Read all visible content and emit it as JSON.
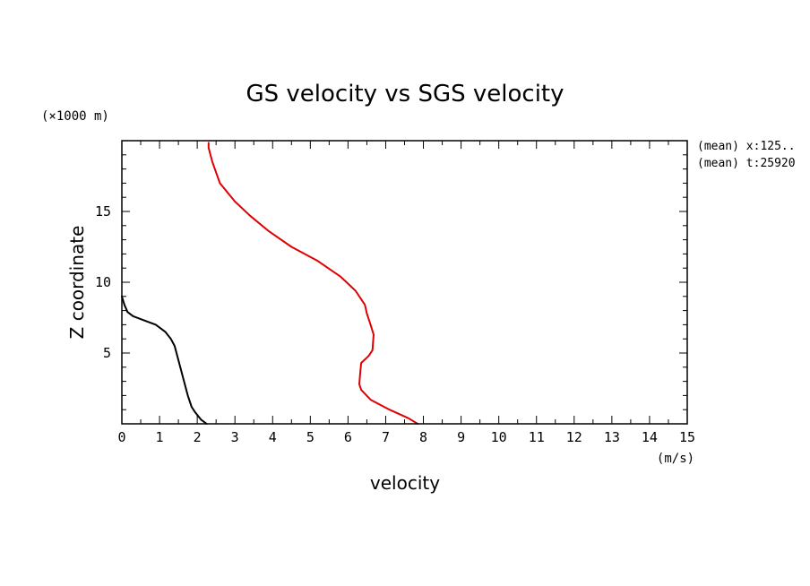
{
  "chart_data": {
    "type": "line",
    "title": "GS velocity vs SGS velocity",
    "xlabel": "velocity",
    "ylabel": "Z coordinate",
    "x_unit": "(m/s)",
    "y_unit": "(×1000 m)",
    "xlim": [
      0,
      15
    ],
    "ylim": [
      0,
      20
    ],
    "x_ticks": [
      0,
      1,
      2,
      3,
      4,
      5,
      6,
      7,
      8,
      9,
      10,
      11,
      12,
      13,
      14,
      15
    ],
    "y_ticks": [
      5,
      10,
      15
    ],
    "grid": false,
    "annotations": [
      "(mean) x:125..",
      "(mean) t:25920"
    ],
    "series": [
      {
        "color": "#000000",
        "points": [
          [
            2.25,
            0.0
          ],
          [
            2.1,
            0.3
          ],
          [
            1.95,
            0.8
          ],
          [
            1.85,
            1.2
          ],
          [
            1.75,
            2.0
          ],
          [
            1.65,
            3.0
          ],
          [
            1.5,
            4.5
          ],
          [
            1.45,
            5.0
          ],
          [
            1.4,
            5.5
          ],
          [
            1.3,
            6.0
          ],
          [
            1.15,
            6.5
          ],
          [
            0.9,
            7.0
          ],
          [
            0.6,
            7.3
          ],
          [
            0.3,
            7.6
          ],
          [
            0.15,
            7.9
          ],
          [
            0.07,
            8.4
          ],
          [
            0.0,
            9.0
          ]
        ]
      },
      {
        "color": "#e00000",
        "points": [
          [
            7.85,
            0.0
          ],
          [
            7.6,
            0.4
          ],
          [
            7.1,
            1.0
          ],
          [
            6.6,
            1.7
          ],
          [
            6.35,
            2.4
          ],
          [
            6.3,
            2.8
          ],
          [
            6.32,
            3.5
          ],
          [
            6.35,
            4.3
          ],
          [
            6.55,
            4.8
          ],
          [
            6.65,
            5.2
          ],
          [
            6.68,
            6.3
          ],
          [
            6.6,
            7.0
          ],
          [
            6.5,
            7.8
          ],
          [
            6.45,
            8.4
          ],
          [
            6.2,
            9.4
          ],
          [
            5.8,
            10.4
          ],
          [
            5.2,
            11.5
          ],
          [
            4.5,
            12.5
          ],
          [
            3.9,
            13.6
          ],
          [
            3.4,
            14.7
          ],
          [
            3.0,
            15.7
          ],
          [
            2.6,
            17.0
          ],
          [
            2.4,
            18.5
          ],
          [
            2.3,
            19.5
          ],
          [
            2.3,
            19.85
          ]
        ]
      }
    ]
  }
}
